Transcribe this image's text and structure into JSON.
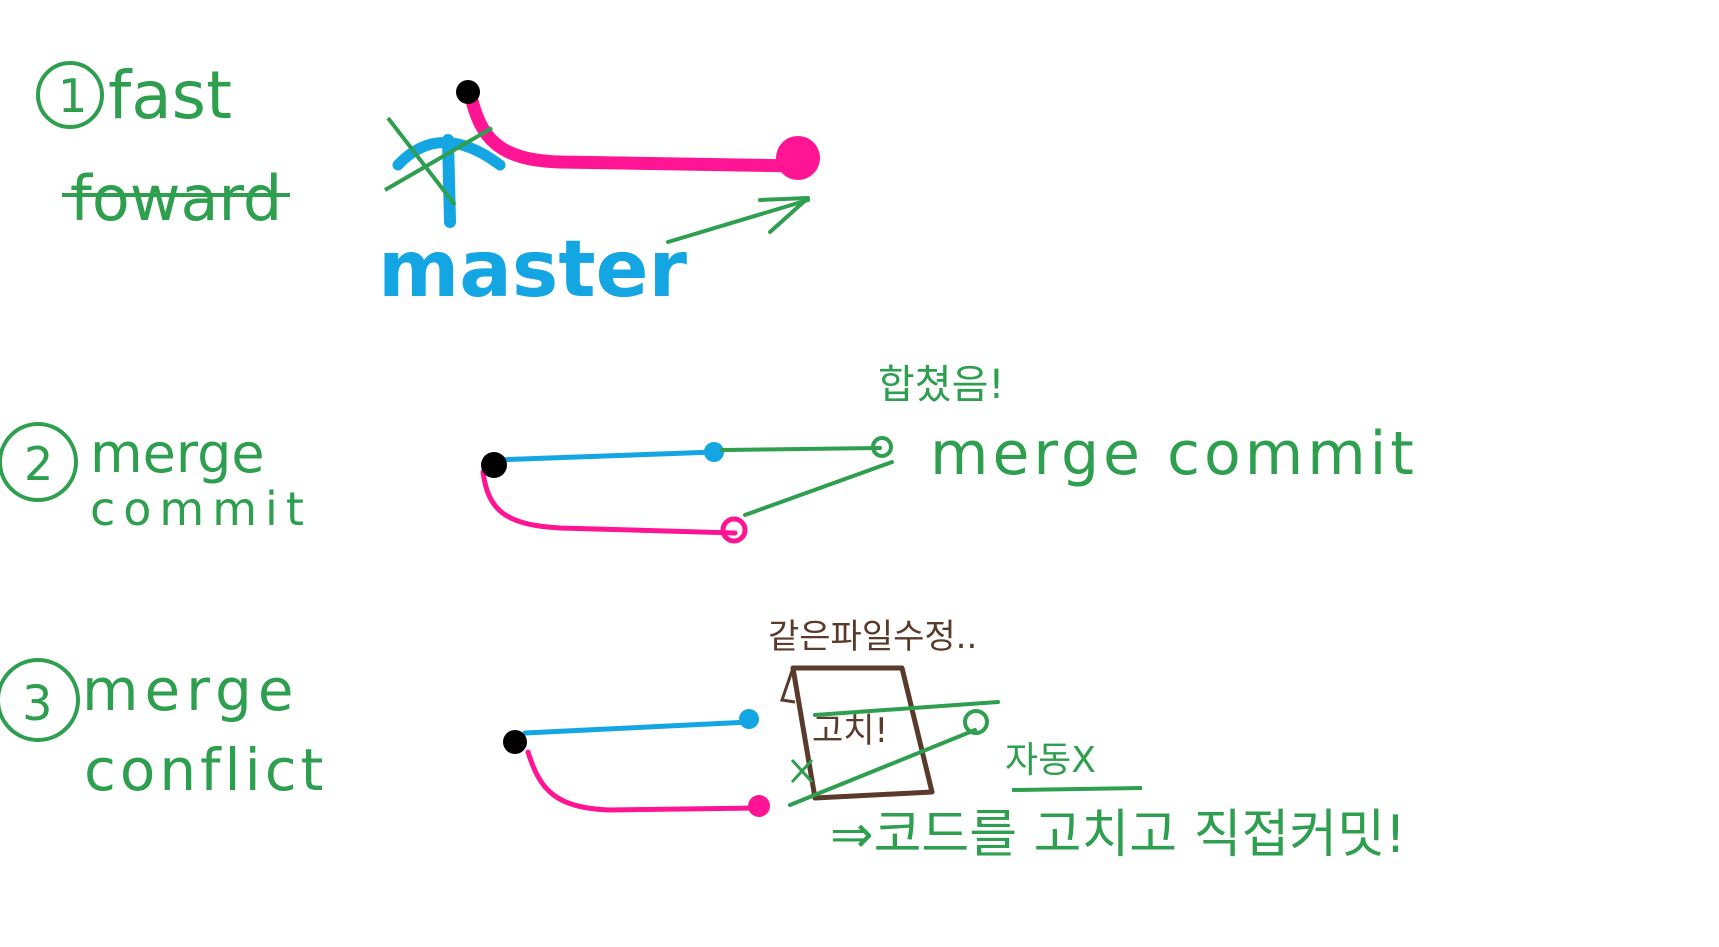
{
  "colors": {
    "green": "#2e9e4f",
    "blue": "#14a5e3",
    "pink": "#ff1493",
    "black": "#000000",
    "brown": "#5a3a2a"
  },
  "section1": {
    "number": "1",
    "title_line1": "fast",
    "title_line2": "foward",
    "branch_label": "master"
  },
  "section2": {
    "number": "2",
    "title_line1": "merge",
    "title_line2": "commit",
    "note_top": "합쳤음!",
    "note_label": "merge commit"
  },
  "section3": {
    "number": "3",
    "title_line1": "merge",
    "title_line2": "conflict",
    "note_top": "같은파일수정..",
    "file_label": "고치!",
    "auto_note": "자동X",
    "fix_note": "⇒코드를 고치고 직접커밋!"
  }
}
